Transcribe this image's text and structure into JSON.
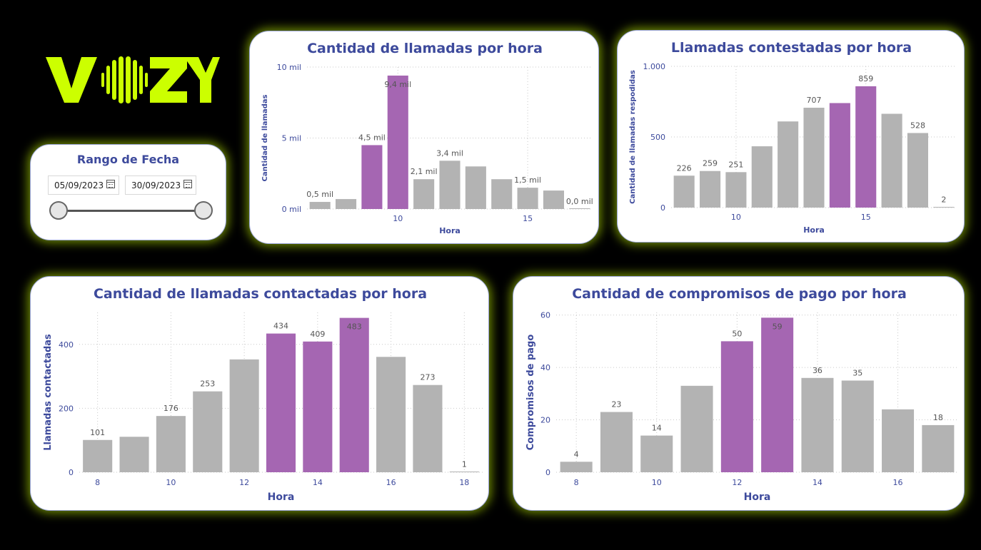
{
  "logo": {
    "text": "VOZY",
    "color": "#ccff00"
  },
  "date_filter": {
    "title": "Rango de Fecha",
    "start": "05/09/2023",
    "end": "30/09/2023",
    "icon": "calendar-icon"
  },
  "colors": {
    "highlight": "#a566b2",
    "default": "#b3b3b3",
    "title": "#3d4a9c",
    "glow": "#ccff00"
  },
  "chart_data": [
    {
      "id": "llamadas",
      "type": "bar",
      "title": "Cantidad de llamadas por hora",
      "xlabel": "Hora",
      "ylabel": "Cantidad de llamadas",
      "x": [
        7,
        8,
        9,
        10,
        11,
        12,
        13,
        14,
        15,
        16,
        17
      ],
      "values": [
        0.5,
        0.7,
        4.5,
        9.4,
        2.1,
        3.4,
        3.0,
        2.1,
        1.5,
        1.3,
        0.0
      ],
      "highlight": [
        false,
        false,
        true,
        true,
        false,
        false,
        false,
        false,
        false,
        false,
        false
      ],
      "labels": [
        "0,5 mil",
        "",
        "4,5 mil",
        "9,4 mil",
        "2,1 mil",
        "3,4 mil",
        "",
        "",
        "1,5 mil",
        "",
        "0,0 mil"
      ],
      "ylim": [
        0,
        10
      ],
      "yticks": [
        0,
        5,
        10
      ],
      "ytick_labels": [
        "0 mil",
        "5 mil",
        "10 mil"
      ],
      "xtick_positions": [
        10,
        15
      ],
      "xtick_labels": [
        "10",
        "15"
      ]
    },
    {
      "id": "contestadas",
      "type": "bar",
      "title": "Llamadas contestadas por hora",
      "xlabel": "Hora",
      "ylabel": "Cantidad de llamadas respodidas",
      "x": [
        8,
        9,
        10,
        11,
        12,
        13,
        14,
        15,
        16,
        17,
        18
      ],
      "values": [
        226,
        259,
        251,
        434,
        610,
        707,
        740,
        859,
        664,
        528,
        2
      ],
      "highlight": [
        false,
        false,
        false,
        false,
        false,
        false,
        true,
        true,
        false,
        false,
        false
      ],
      "labels": [
        "226",
        "259",
        "251",
        "",
        "",
        "707",
        "",
        "859",
        "",
        "528",
        "2"
      ],
      "ylim": [
        0,
        1000
      ],
      "yticks": [
        0,
        500,
        1000
      ],
      "ytick_labels": [
        "0",
        "500",
        "1.000"
      ],
      "xtick_positions": [
        10,
        15
      ],
      "xtick_labels": [
        "10",
        "15"
      ]
    },
    {
      "id": "contactadas",
      "type": "bar",
      "title": "Cantidad de llamadas contactadas por hora",
      "xlabel": "Hora",
      "ylabel": "Llamadas contactadas",
      "x": [
        8,
        9,
        10,
        11,
        12,
        13,
        14,
        15,
        16,
        17,
        18
      ],
      "values": [
        101,
        111,
        176,
        253,
        353,
        434,
        409,
        483,
        361,
        273,
        1
      ],
      "highlight": [
        false,
        false,
        false,
        false,
        false,
        true,
        true,
        true,
        false,
        false,
        false
      ],
      "labels": [
        "101",
        "",
        "176",
        "253",
        "",
        "434",
        "409",
        "483",
        "",
        "273",
        "1"
      ],
      "ylim": [
        0,
        500
      ],
      "yticks": [
        0,
        200,
        400
      ],
      "ytick_labels": [
        "0",
        "200",
        "400"
      ],
      "xtick_positions": [
        8,
        10,
        12,
        14,
        16,
        18
      ],
      "xtick_labels": [
        "8",
        "10",
        "12",
        "14",
        "16",
        "18"
      ]
    },
    {
      "id": "compromisos",
      "type": "bar",
      "title": "Cantidad de compromisos de pago por hora",
      "xlabel": "Hora",
      "ylabel": "Compromisos de pago",
      "x": [
        8,
        9,
        10,
        11,
        12,
        13,
        14,
        15,
        16,
        17
      ],
      "values": [
        4,
        23,
        14,
        33,
        50,
        59,
        36,
        35,
        24,
        18
      ],
      "highlight": [
        false,
        false,
        false,
        false,
        true,
        true,
        false,
        false,
        false,
        false
      ],
      "labels": [
        "4",
        "23",
        "14",
        "",
        "50",
        "59",
        "36",
        "35",
        "",
        "18"
      ],
      "ylim": [
        0,
        61
      ],
      "yticks": [
        0,
        20,
        40,
        60
      ],
      "ytick_labels": [
        "0",
        "20",
        "40",
        "60"
      ],
      "xtick_positions": [
        8,
        10,
        12,
        14,
        16
      ],
      "xtick_labels": [
        "8",
        "10",
        "12",
        "14",
        "16"
      ]
    }
  ]
}
